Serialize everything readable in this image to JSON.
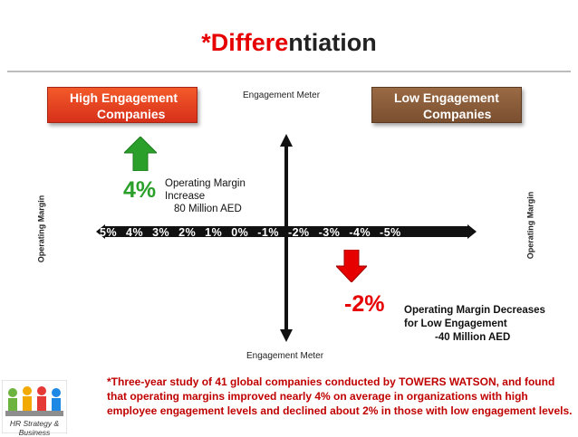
{
  "title": {
    "part1": "*Differe",
    "part2": "ntiation"
  },
  "high_box": {
    "line1": "High Engagement",
    "line2": "Companies",
    "color": "#e4431f"
  },
  "low_box": {
    "line1": "Low Engagement",
    "line2": "Companies",
    "color": "#8a5a36"
  },
  "engagement_meter_top": "Engagement Meter",
  "engagement_meter_bottom": "Engagement Meter",
  "operating_margin_left": "Operating Margin",
  "operating_margin_right": "Operating Margin",
  "scale_text": "5%   4%   3%   2%   1%   0%  -1%  -2%  -3%  -4%  -5%",
  "increase": {
    "pct": "4%",
    "line1": "Operating Margin",
    "line2": "Increase",
    "line3": "80 Million AED",
    "arrow_color": "#2aa02a"
  },
  "decrease": {
    "pct": "-2%",
    "line1": "Operating Margin Decreases",
    "line2": "for Low Engagement",
    "line3": "-40 Million AED",
    "arrow_color": "#e60000"
  },
  "note": {
    "part1": "*Three-year study of 41 global companies conducted by TOWERS WATSON, and found that operating margins improved nearly 4% on average in organizations with high employee engagement levels and declined about 2% in those with low engagement levels."
  },
  "logo": {
    "text": "HR Strategy & Business",
    "icon": "puzzle-people-logo"
  }
}
